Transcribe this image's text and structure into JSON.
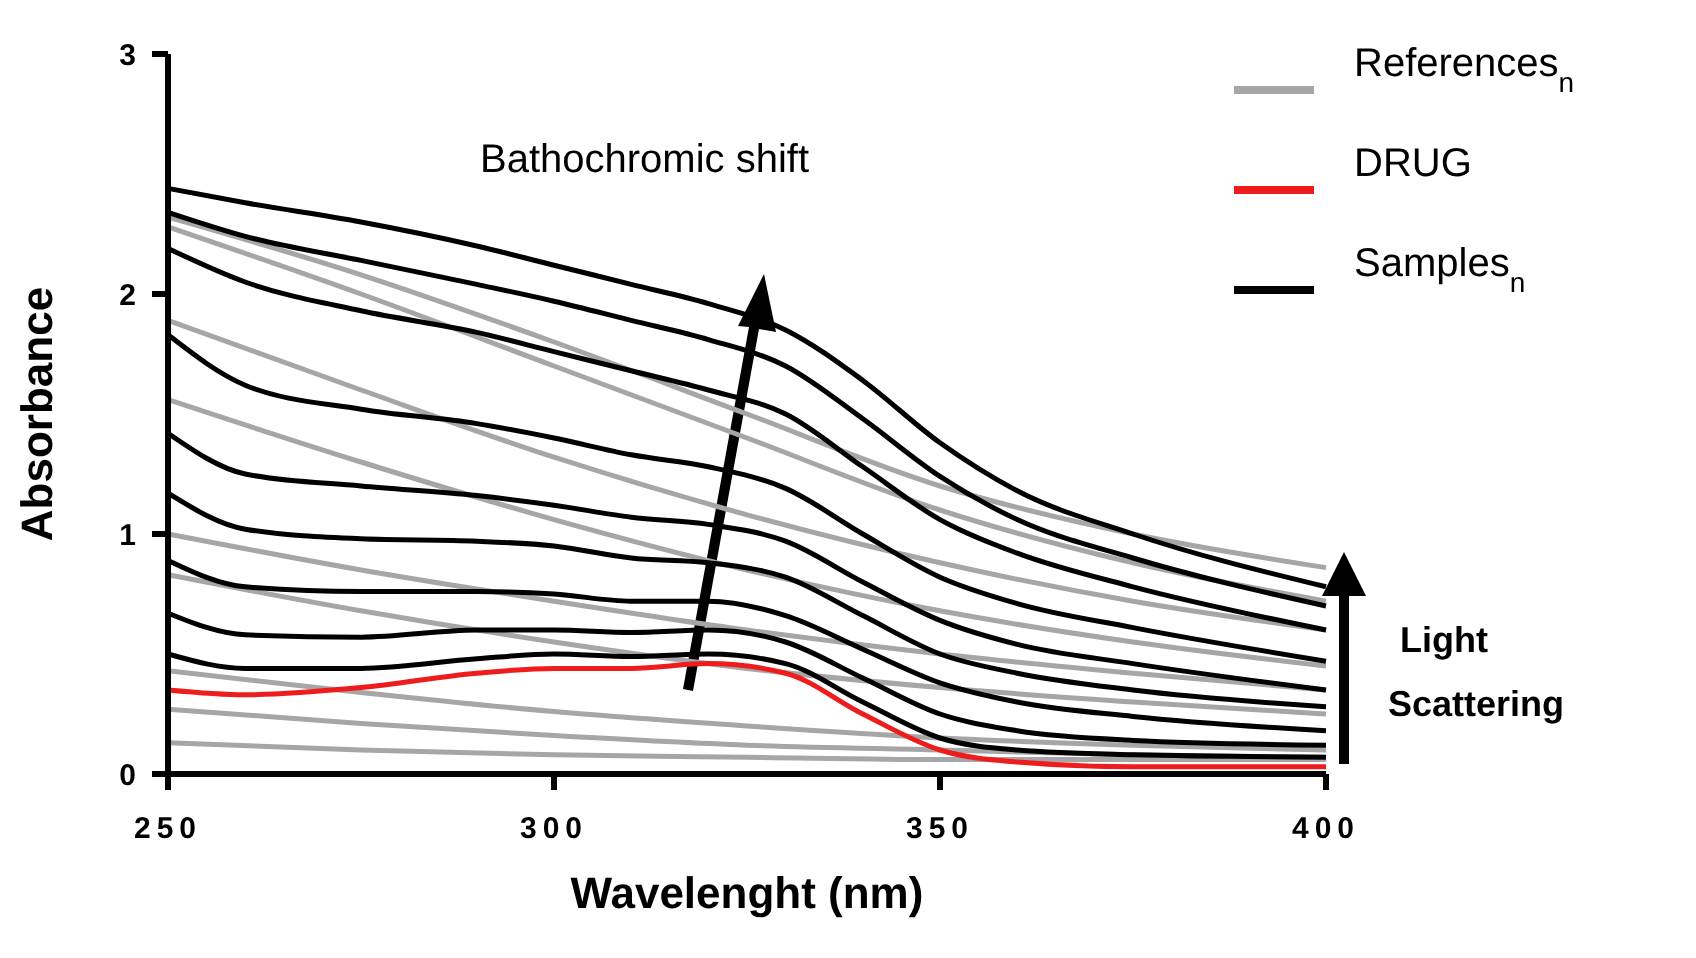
{
  "chart_data": {
    "type": "line",
    "xlabel": "Wavelenght (nm)",
    "ylabel": "Absorbance",
    "xlim": [
      250,
      400
    ],
    "ylim": [
      0,
      3
    ],
    "xticks": [
      250,
      300,
      350,
      400
    ],
    "yticks": [
      0,
      1,
      2,
      3
    ],
    "grid": false,
    "legend": "top right",
    "marker": "none",
    "line_style": "solid",
    "annotations": [
      "Bathochromic shift",
      "Light Scattering"
    ],
    "series": [
      {
        "name": "References$_{n}$",
        "color": "#a6a6a8",
        "x": [
          250,
          275,
          300,
          325,
          350,
          375,
          400
        ],
        "values": [
          2.32,
          2.08,
          1.8,
          1.5,
          1.2,
          1.0,
          0.86
        ]
      },
      {
        "color": "#a6a6a8",
        "x": [
          250,
          275,
          300,
          325,
          350,
          375,
          400
        ],
        "values": [
          2.28,
          2.0,
          1.7,
          1.4,
          1.1,
          0.88,
          0.72
        ]
      },
      {
        "color": "#a6a6a8",
        "x": [
          250,
          275,
          300,
          325,
          350,
          375,
          400
        ],
        "values": [
          1.89,
          1.6,
          1.32,
          1.08,
          0.88,
          0.72,
          0.6
        ]
      },
      {
        "color": "#a6a6a8",
        "x": [
          250,
          275,
          300,
          325,
          350,
          375,
          400
        ],
        "values": [
          1.56,
          1.3,
          1.06,
          0.85,
          0.68,
          0.55,
          0.45
        ]
      },
      {
        "color": "#a6a6a8",
        "x": [
          250,
          275,
          300,
          325,
          350,
          375,
          400
        ],
        "values": [
          1.0,
          0.85,
          0.72,
          0.6,
          0.5,
          0.42,
          0.35
        ]
      },
      {
        "color": "#a6a6a8",
        "x": [
          250,
          275,
          300,
          325,
          350,
          375,
          400
        ],
        "values": [
          0.83,
          0.68,
          0.55,
          0.44,
          0.36,
          0.3,
          0.25
        ]
      },
      {
        "color": "#a6a6a8",
        "x": [
          250,
          275,
          300,
          325,
          350,
          375,
          400
        ],
        "values": [
          0.43,
          0.34,
          0.26,
          0.2,
          0.15,
          0.12,
          0.1
        ]
      },
      {
        "color": "#a6a6a8",
        "x": [
          250,
          275,
          300,
          325,
          350,
          375,
          400
        ],
        "values": [
          0.27,
          0.21,
          0.16,
          0.12,
          0.1,
          0.08,
          0.07
        ]
      },
      {
        "color": "#a6a6a8",
        "x": [
          250,
          275,
          300,
          325,
          350,
          375,
          400
        ],
        "values": [
          0.13,
          0.1,
          0.08,
          0.07,
          0.06,
          0.06,
          0.06
        ]
      },
      {
        "name": "DRUG",
        "color": "#ee1c1c",
        "x": [
          250,
          260,
          275,
          290,
          300,
          310,
          320,
          330,
          340,
          350,
          360,
          375,
          400
        ],
        "values": [
          0.35,
          0.33,
          0.36,
          0.42,
          0.44,
          0.44,
          0.46,
          0.42,
          0.25,
          0.1,
          0.05,
          0.03,
          0.03
        ]
      },
      {
        "name": "Samples$_{n}$",
        "color": "#000000",
        "x": [
          250,
          260,
          275,
          290,
          300,
          310,
          320,
          330,
          340,
          350,
          360,
          375,
          400
        ],
        "values": [
          2.44,
          2.38,
          2.3,
          2.2,
          2.12,
          2.04,
          1.96,
          1.85,
          1.64,
          1.38,
          1.18,
          1.0,
          0.78
        ]
      },
      {
        "color": "#000000",
        "x": [
          250,
          260,
          275,
          290,
          300,
          310,
          320,
          330,
          340,
          350,
          360,
          375,
          400
        ],
        "values": [
          2.34,
          2.24,
          2.14,
          2.04,
          1.97,
          1.89,
          1.81,
          1.7,
          1.48,
          1.24,
          1.06,
          0.9,
          0.7
        ]
      },
      {
        "color": "#000000",
        "x": [
          250,
          260,
          275,
          290,
          300,
          310,
          320,
          330,
          340,
          350,
          360,
          375,
          400
        ],
        "values": [
          2.19,
          2.05,
          1.93,
          1.84,
          1.76,
          1.68,
          1.6,
          1.5,
          1.28,
          1.06,
          0.92,
          0.78,
          0.6
        ]
      },
      {
        "color": "#000000",
        "x": [
          250,
          260,
          275,
          290,
          300,
          310,
          320,
          330,
          340,
          350,
          360,
          375,
          400
        ],
        "values": [
          1.83,
          1.62,
          1.52,
          1.46,
          1.4,
          1.33,
          1.28,
          1.19,
          1.0,
          0.82,
          0.71,
          0.61,
          0.47
        ]
      },
      {
        "color": "#000000",
        "x": [
          250,
          260,
          275,
          290,
          300,
          310,
          320,
          330,
          340,
          350,
          360,
          375,
          400
        ],
        "values": [
          1.42,
          1.25,
          1.2,
          1.16,
          1.12,
          1.07,
          1.04,
          0.97,
          0.8,
          0.64,
          0.54,
          0.46,
          0.35
        ]
      },
      {
        "color": "#000000",
        "x": [
          250,
          260,
          275,
          290,
          300,
          310,
          320,
          330,
          340,
          350,
          360,
          375,
          400
        ],
        "values": [
          1.17,
          1.02,
          0.98,
          0.97,
          0.95,
          0.9,
          0.88,
          0.82,
          0.66,
          0.5,
          0.42,
          0.35,
          0.28
        ]
      },
      {
        "color": "#000000",
        "x": [
          250,
          260,
          275,
          290,
          300,
          310,
          320,
          330,
          340,
          350,
          360,
          375,
          400
        ],
        "values": [
          0.89,
          0.78,
          0.76,
          0.76,
          0.75,
          0.72,
          0.72,
          0.66,
          0.52,
          0.38,
          0.3,
          0.24,
          0.18
        ]
      },
      {
        "color": "#000000",
        "x": [
          250,
          260,
          275,
          290,
          300,
          310,
          320,
          330,
          340,
          350,
          360,
          375,
          400
        ],
        "values": [
          0.67,
          0.58,
          0.57,
          0.6,
          0.6,
          0.59,
          0.6,
          0.55,
          0.4,
          0.25,
          0.18,
          0.14,
          0.12
        ]
      },
      {
        "color": "#000000",
        "x": [
          250,
          260,
          275,
          290,
          300,
          310,
          320,
          330,
          340,
          350,
          360,
          375,
          400
        ],
        "values": [
          0.5,
          0.44,
          0.44,
          0.48,
          0.5,
          0.49,
          0.5,
          0.46,
          0.3,
          0.15,
          0.1,
          0.08,
          0.07
        ]
      }
    ]
  }
}
